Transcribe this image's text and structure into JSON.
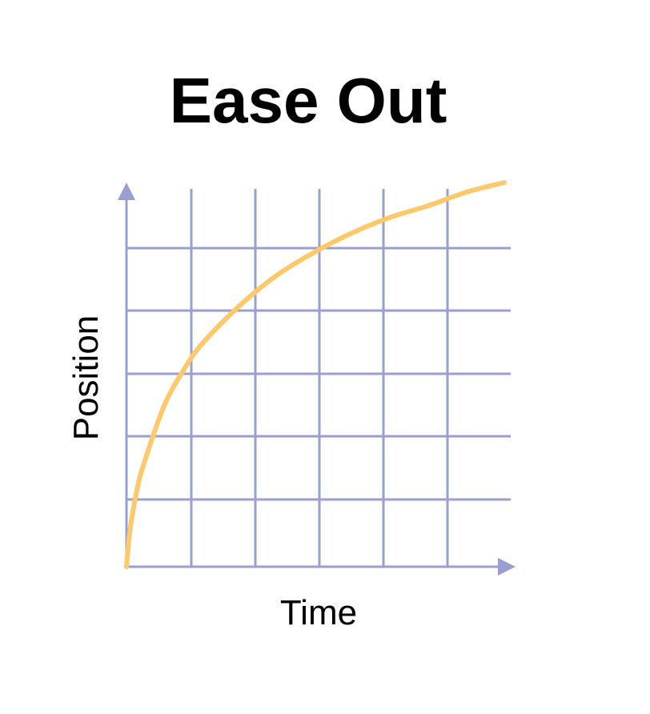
{
  "title": "Ease Out",
  "colors": {
    "grid": "#9a9fd1",
    "curve": "#ffc86a",
    "text": "#000000",
    "background": "#ffffff"
  },
  "chart_data": {
    "type": "line",
    "title": "Ease Out",
    "xlabel": "Time",
    "ylabel": "Position",
    "grid": true,
    "xlim": [
      0,
      1
    ],
    "ylim": [
      0,
      1
    ],
    "series": [
      {
        "x": [
          0,
          0.01,
          0.03,
          0.05,
          0.1,
          0.15,
          0.2,
          0.3,
          0.4,
          0.5,
          0.6,
          0.7,
          0.8,
          0.9,
          1.0
        ],
        "values": [
          0,
          0.1,
          0.21,
          0.28,
          0.42,
          0.51,
          0.58,
          0.68,
          0.76,
          0.82,
          0.87,
          0.91,
          0.94,
          0.975,
          1.0
        ]
      }
    ]
  }
}
